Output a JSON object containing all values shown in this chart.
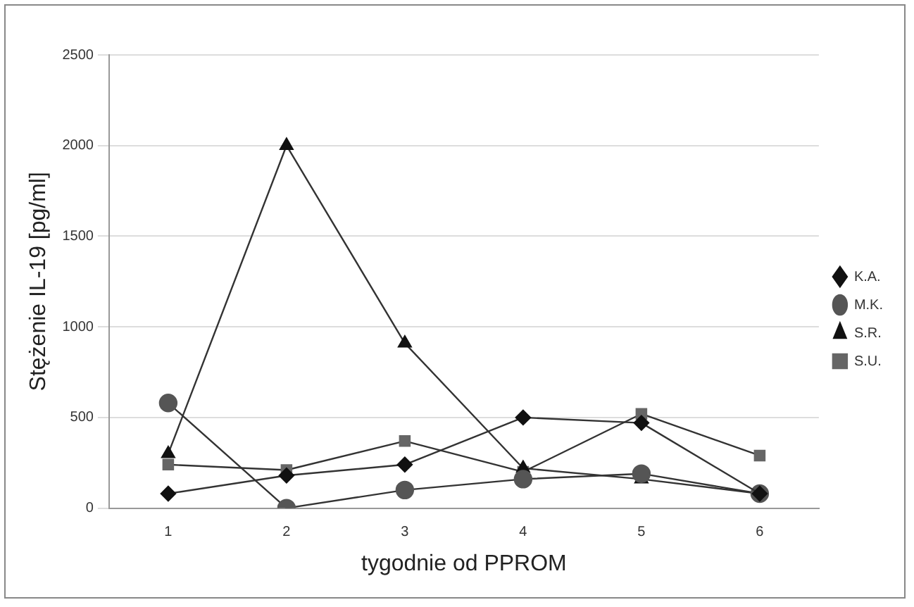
{
  "chart_data": {
    "type": "line",
    "xlabel": "tygodnie od PPROM",
    "ylabel": "Stężenie IL-19 [pg/ml]",
    "categories": [
      "1",
      "2",
      "3",
      "4",
      "5",
      "6"
    ],
    "series": [
      {
        "name": "K.A.",
        "color": "#111111",
        "marker": "diamond",
        "values": [
          80,
          180,
          240,
          500,
          470,
          80
        ]
      },
      {
        "name": "M.K.",
        "color": "#555555",
        "marker": "circle",
        "values": [
          580,
          0,
          100,
          160,
          190,
          80
        ]
      },
      {
        "name": "S.R.",
        "color": "#111111",
        "marker": "triangle",
        "values": [
          300,
          2000,
          910,
          220,
          160,
          80
        ]
      },
      {
        "name": "S.U.",
        "color": "#666666",
        "marker": "square",
        "values": [
          240,
          210,
          370,
          200,
          520,
          290
        ]
      }
    ],
    "ylim": [
      0,
      2500
    ],
    "yticks": [
      0,
      500,
      1000,
      1500,
      2000,
      2500
    ],
    "grid": "y",
    "legend": "right"
  }
}
